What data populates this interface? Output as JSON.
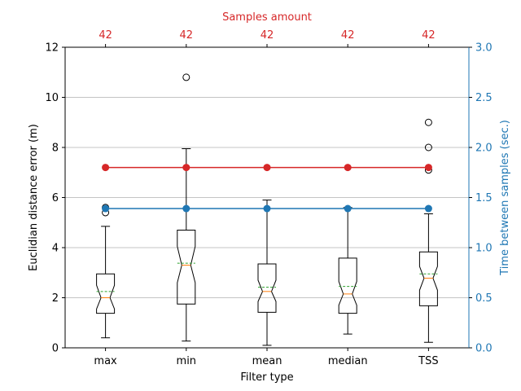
{
  "chart_data": {
    "type": "box",
    "xlabel": "Filter type",
    "ylabel": "Euclidian distance error (m)",
    "ylim": [
      0,
      12
    ],
    "yticks": [
      0,
      2,
      4,
      6,
      8,
      10,
      12
    ],
    "grid": "horizontal",
    "categories": [
      "max",
      "min",
      "mean",
      "median",
      "TSS"
    ],
    "boxes": [
      {
        "whisker_low": 0.4,
        "q1": 1.38,
        "median": 2.0,
        "q3": 2.95,
        "whisker_high": 4.85,
        "notch_low": 1.55,
        "notch_high": 2.5,
        "mean": 2.25,
        "outliers": [
          5.4,
          5.6
        ]
      },
      {
        "whisker_low": 0.27,
        "q1": 1.75,
        "median": 3.3,
        "q3": 4.7,
        "whisker_high": 7.95,
        "notch_low": 2.6,
        "notch_high": 4.05,
        "mean": 3.38,
        "outliers": [
          10.8
        ]
      },
      {
        "whisker_low": 0.1,
        "q1": 1.42,
        "median": 2.25,
        "q3": 3.35,
        "whisker_high": 5.9,
        "notch_low": 1.85,
        "notch_high": 2.7,
        "mean": 2.42,
        "outliers": []
      },
      {
        "whisker_low": 0.55,
        "q1": 1.38,
        "median": 2.15,
        "q3": 3.58,
        "whisker_high": 5.6,
        "notch_low": 1.7,
        "notch_high": 2.65,
        "mean": 2.45,
        "outliers": []
      },
      {
        "whisker_low": 0.22,
        "q1": 1.68,
        "median": 2.78,
        "q3": 3.83,
        "whisker_high": 5.35,
        "notch_low": 2.3,
        "notch_high": 3.25,
        "mean": 2.95,
        "outliers": [
          7.1,
          8.0,
          9.0
        ]
      }
    ],
    "secondary_y": {
      "label": "Time between samples (sec.)",
      "ylim": [
        0,
        3
      ],
      "yticks": [
        "0.0",
        "0.5",
        "1.0",
        "1.5",
        "2.0",
        "2.5",
        "3.0"
      ],
      "color": "#1f77b4",
      "values": [
        1.39,
        1.39,
        1.39,
        1.39,
        1.39
      ]
    },
    "top_axis": {
      "label": "Samples amount",
      "color": "#d62728",
      "tick_labels": [
        "42",
        "42",
        "42",
        "42",
        "42"
      ]
    },
    "red_line": {
      "values": [
        7.2,
        7.2,
        7.2,
        7.2,
        7.2
      ]
    },
    "colors": {
      "box": "#000000",
      "median": "#ff7f0e",
      "mean": "#2ca02c",
      "red": "#d62728",
      "blue": "#1f77b4",
      "grid": "#b0b0b0"
    }
  }
}
